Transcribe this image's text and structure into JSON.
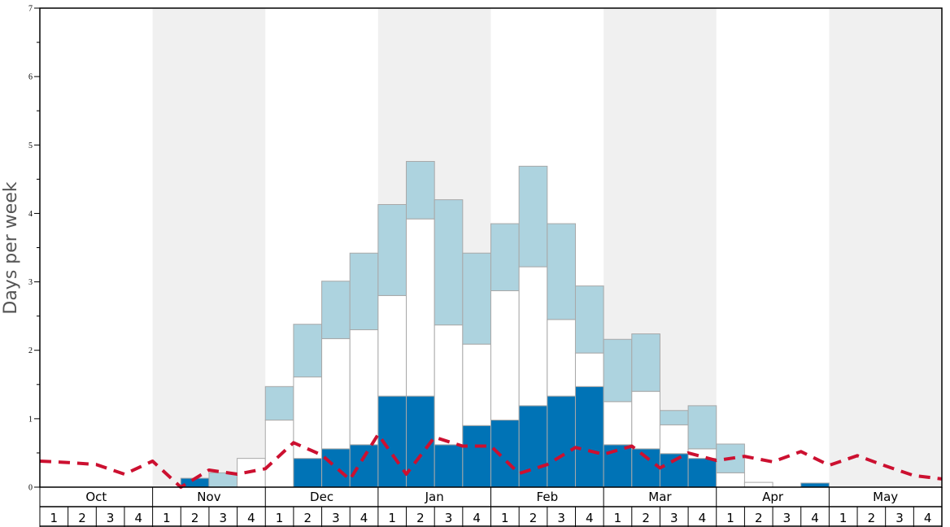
{
  "chart_data": {
    "type": "bar",
    "stacked": true,
    "ylabel": "Days per week",
    "ylim": [
      0,
      7
    ],
    "yticks": [
      "0",
      "1",
      "2",
      "3",
      "4",
      "5",
      "6",
      "7"
    ],
    "months": [
      "Oct",
      "Nov",
      "Dec",
      "Jan",
      "Feb",
      "Mar",
      "Apr",
      "May"
    ],
    "weeks_per_month": [
      "1",
      "2",
      "3",
      "4"
    ],
    "month_shading": [
      false,
      true,
      false,
      true,
      false,
      true,
      false,
      true
    ],
    "colors": {
      "dark": "#0073b6",
      "mid": "#ffffff",
      "light": "#add3df",
      "bar_stroke": "#a8a8a8",
      "shade": "#f0f0f0",
      "line": "#cc1030",
      "axis": "#000000"
    },
    "series": [
      {
        "key": "dark",
        "values": [
          0,
          0,
          0,
          0,
          0,
          0.13,
          0,
          0,
          0,
          0.42,
          0.56,
          0.62,
          1.33,
          1.33,
          0.62,
          0.9,
          0.98,
          1.19,
          1.33,
          1.47,
          0.62,
          0.56,
          0.49,
          0.42,
          0,
          0,
          0,
          0.06,
          0,
          0,
          0,
          0
        ]
      },
      {
        "key": "mid",
        "values": [
          0,
          0,
          0,
          0,
          0,
          0,
          0,
          0.42,
          0.98,
          1.19,
          1.61,
          1.68,
          1.47,
          2.59,
          1.75,
          1.19,
          1.89,
          2.03,
          1.12,
          0.49,
          0.63,
          0.84,
          0.42,
          0.14,
          0.21,
          0.07,
          0,
          0,
          0,
          0,
          0,
          0
        ]
      },
      {
        "key": "light",
        "values": [
          0,
          0,
          0,
          0,
          0,
          0,
          0.21,
          0,
          0.49,
          0.77,
          0.84,
          1.12,
          1.33,
          0.84,
          1.83,
          1.33,
          0.98,
          1.47,
          1.4,
          0.98,
          0.91,
          0.84,
          0.21,
          0.63,
          0.42,
          0,
          0,
          0,
          0,
          0,
          0,
          0
        ]
      }
    ],
    "dashed_line_values": [
      0.38,
      0.36,
      0.33,
      0.19,
      0.38,
      0.0,
      0.25,
      0.19,
      0.27,
      0.65,
      0.47,
      0.11,
      0.77,
      0.19,
      0.73,
      0.6,
      0.6,
      0.2,
      0.33,
      0.58,
      0.48,
      0.6,
      0.28,
      0.5,
      0.39,
      0.45,
      0.37,
      0.52,
      0.32,
      0.46,
      0.31,
      0.17,
      0.12
    ]
  }
}
